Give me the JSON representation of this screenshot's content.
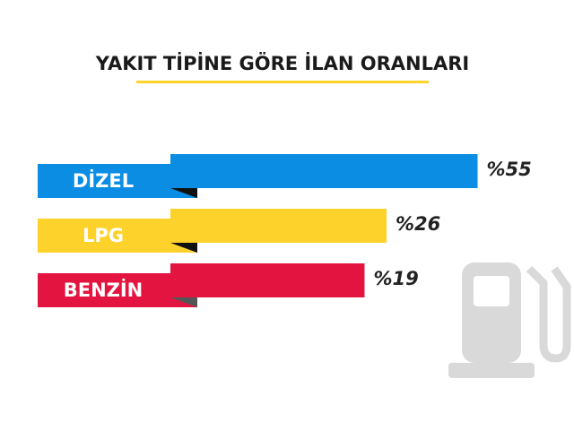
{
  "chart_data": {
    "type": "bar",
    "title": "YAKIT TİPİNE GÖRE İLAN ORANLARI",
    "categories": [
      "DİZEL",
      "LPG",
      "BENZİN"
    ],
    "values": [
      55,
      26,
      19
    ],
    "value_labels": [
      "%55",
      "%26",
      "%19"
    ],
    "colors": [
      "#0a8de2",
      "#fdd22b",
      "#e3143f"
    ]
  }
}
